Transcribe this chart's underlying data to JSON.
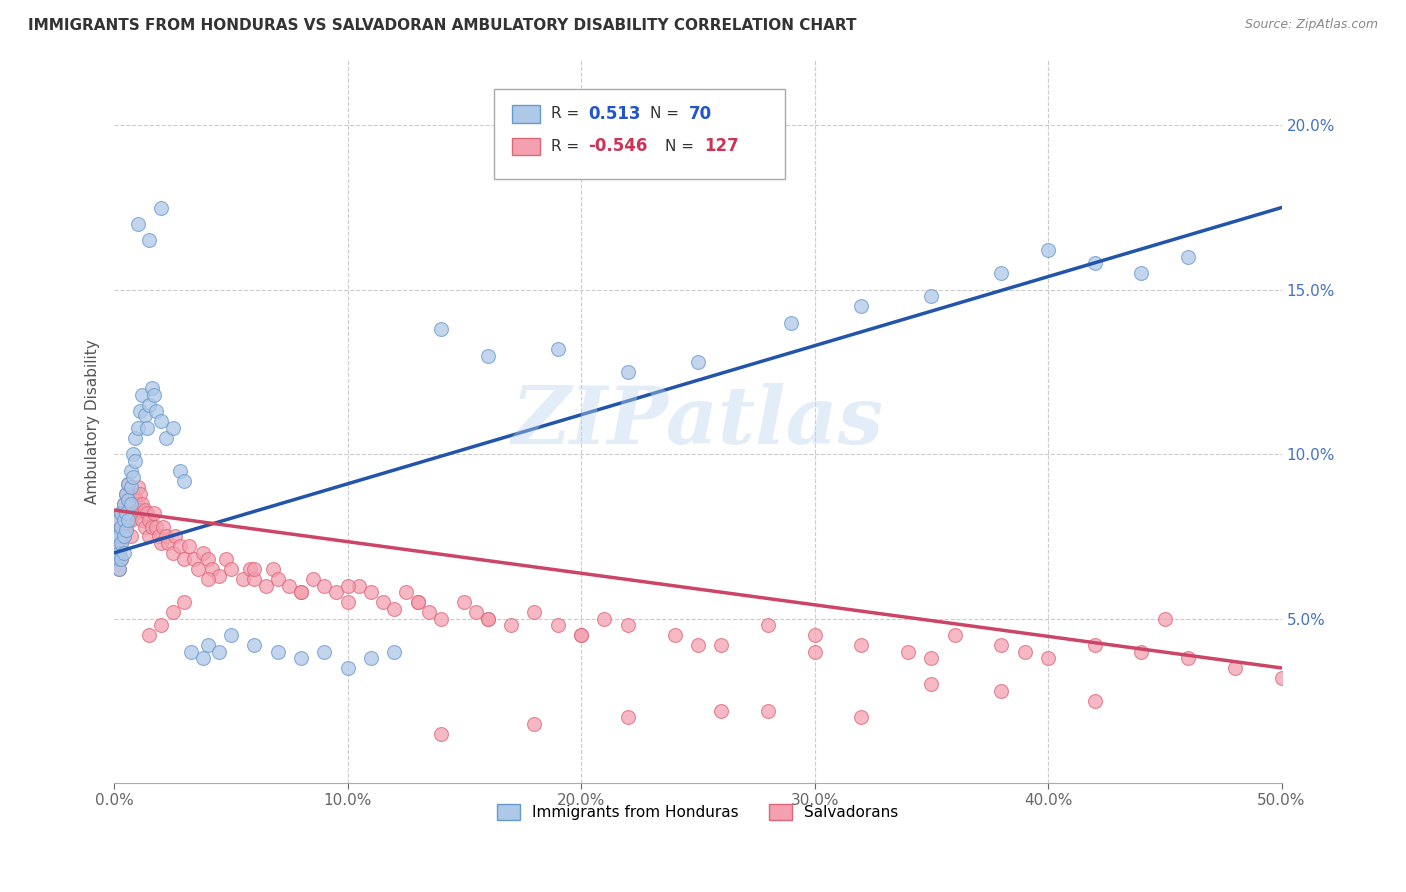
{
  "title": "IMMIGRANTS FROM HONDURAS VS SALVADORAN AMBULATORY DISABILITY CORRELATION CHART",
  "source": "Source: ZipAtlas.com",
  "ylabel_label": "Ambulatory Disability",
  "xlim": [
    0.0,
    0.5
  ],
  "ylim": [
    0.0,
    0.22
  ],
  "xticks": [
    0.0,
    0.1,
    0.2,
    0.3,
    0.4,
    0.5
  ],
  "xticklabels": [
    "0.0%",
    "10.0%",
    "20.0%",
    "30.0%",
    "40.0%",
    "50.0%"
  ],
  "yticks_right": [
    0.05,
    0.1,
    0.15,
    0.2
  ],
  "yticklabels_right": [
    "5.0%",
    "10.0%",
    "15.0%",
    "20.0%"
  ],
  "blue_color": "#aec8e8",
  "blue_edge": "#6699cc",
  "pink_color": "#f4a0b0",
  "pink_edge": "#dd6677",
  "line_blue": "#2255aa",
  "line_pink": "#cc4466",
  "watermark": "ZIPatlas",
  "watermark_color": "#b8d4ee",
  "series1_label": "Immigrants from Honduras",
  "series2_label": "Salvadorans",
  "legend_val1": "0.513",
  "legend_n1": "70",
  "legend_val2": "-0.546",
  "legend_n2": "127",
  "blue_scatter_x": [
    0.001,
    0.001,
    0.001,
    0.002,
    0.002,
    0.002,
    0.002,
    0.003,
    0.003,
    0.003,
    0.003,
    0.004,
    0.004,
    0.004,
    0.004,
    0.005,
    0.005,
    0.005,
    0.006,
    0.006,
    0.006,
    0.007,
    0.007,
    0.007,
    0.008,
    0.008,
    0.009,
    0.009,
    0.01,
    0.011,
    0.012,
    0.013,
    0.014,
    0.015,
    0.016,
    0.017,
    0.018,
    0.02,
    0.022,
    0.025,
    0.028,
    0.03,
    0.033,
    0.038,
    0.04,
    0.045,
    0.05,
    0.06,
    0.07,
    0.08,
    0.09,
    0.1,
    0.11,
    0.12,
    0.14,
    0.16,
    0.19,
    0.22,
    0.25,
    0.29,
    0.32,
    0.35,
    0.38,
    0.4,
    0.42,
    0.44,
    0.46,
    0.01,
    0.015,
    0.02
  ],
  "blue_scatter_y": [
    0.075,
    0.072,
    0.068,
    0.08,
    0.075,
    0.07,
    0.065,
    0.082,
    0.078,
    0.073,
    0.068,
    0.085,
    0.08,
    0.075,
    0.07,
    0.088,
    0.082,
    0.077,
    0.091,
    0.086,
    0.08,
    0.095,
    0.09,
    0.085,
    0.1,
    0.093,
    0.105,
    0.098,
    0.108,
    0.113,
    0.118,
    0.112,
    0.108,
    0.115,
    0.12,
    0.118,
    0.113,
    0.11,
    0.105,
    0.108,
    0.095,
    0.092,
    0.04,
    0.038,
    0.042,
    0.04,
    0.045,
    0.042,
    0.04,
    0.038,
    0.04,
    0.035,
    0.038,
    0.04,
    0.138,
    0.13,
    0.132,
    0.125,
    0.128,
    0.14,
    0.145,
    0.148,
    0.155,
    0.162,
    0.158,
    0.155,
    0.16,
    0.17,
    0.165,
    0.175
  ],
  "pink_scatter_x": [
    0.001,
    0.001,
    0.001,
    0.002,
    0.002,
    0.002,
    0.002,
    0.003,
    0.003,
    0.003,
    0.003,
    0.004,
    0.004,
    0.004,
    0.005,
    0.005,
    0.005,
    0.006,
    0.006,
    0.006,
    0.007,
    0.007,
    0.007,
    0.008,
    0.008,
    0.009,
    0.009,
    0.01,
    0.01,
    0.011,
    0.011,
    0.012,
    0.012,
    0.013,
    0.013,
    0.014,
    0.015,
    0.015,
    0.016,
    0.017,
    0.018,
    0.019,
    0.02,
    0.021,
    0.022,
    0.023,
    0.025,
    0.026,
    0.028,
    0.03,
    0.032,
    0.034,
    0.036,
    0.038,
    0.04,
    0.042,
    0.045,
    0.048,
    0.05,
    0.055,
    0.058,
    0.06,
    0.065,
    0.068,
    0.07,
    0.075,
    0.08,
    0.085,
    0.09,
    0.095,
    0.1,
    0.105,
    0.11,
    0.115,
    0.12,
    0.125,
    0.13,
    0.135,
    0.14,
    0.15,
    0.155,
    0.16,
    0.17,
    0.18,
    0.19,
    0.2,
    0.21,
    0.22,
    0.24,
    0.26,
    0.28,
    0.3,
    0.32,
    0.34,
    0.36,
    0.38,
    0.39,
    0.4,
    0.42,
    0.44,
    0.46,
    0.48,
    0.5,
    0.35,
    0.3,
    0.25,
    0.2,
    0.16,
    0.13,
    0.1,
    0.08,
    0.06,
    0.04,
    0.03,
    0.025,
    0.02,
    0.015,
    0.35,
    0.38,
    0.42,
    0.28,
    0.32,
    0.18,
    0.14,
    0.22,
    0.26,
    0.45
  ],
  "pink_scatter_y": [
    0.075,
    0.072,
    0.068,
    0.08,
    0.075,
    0.07,
    0.065,
    0.082,
    0.078,
    0.073,
    0.068,
    0.085,
    0.08,
    0.075,
    0.088,
    0.082,
    0.077,
    0.091,
    0.086,
    0.08,
    0.085,
    0.08,
    0.075,
    0.088,
    0.083,
    0.087,
    0.082,
    0.09,
    0.085,
    0.088,
    0.083,
    0.085,
    0.08,
    0.083,
    0.078,
    0.082,
    0.08,
    0.075,
    0.078,
    0.082,
    0.078,
    0.075,
    0.073,
    0.078,
    0.075,
    0.073,
    0.07,
    0.075,
    0.072,
    0.068,
    0.072,
    0.068,
    0.065,
    0.07,
    0.068,
    0.065,
    0.063,
    0.068,
    0.065,
    0.062,
    0.065,
    0.062,
    0.06,
    0.065,
    0.062,
    0.06,
    0.058,
    0.062,
    0.06,
    0.058,
    0.055,
    0.06,
    0.058,
    0.055,
    0.053,
    0.058,
    0.055,
    0.052,
    0.05,
    0.055,
    0.052,
    0.05,
    0.048,
    0.052,
    0.048,
    0.045,
    0.05,
    0.048,
    0.045,
    0.042,
    0.048,
    0.045,
    0.042,
    0.04,
    0.045,
    0.042,
    0.04,
    0.038,
    0.042,
    0.04,
    0.038,
    0.035,
    0.032,
    0.038,
    0.04,
    0.042,
    0.045,
    0.05,
    0.055,
    0.06,
    0.058,
    0.065,
    0.062,
    0.055,
    0.052,
    0.048,
    0.045,
    0.03,
    0.028,
    0.025,
    0.022,
    0.02,
    0.018,
    0.015,
    0.02,
    0.022,
    0.05
  ]
}
